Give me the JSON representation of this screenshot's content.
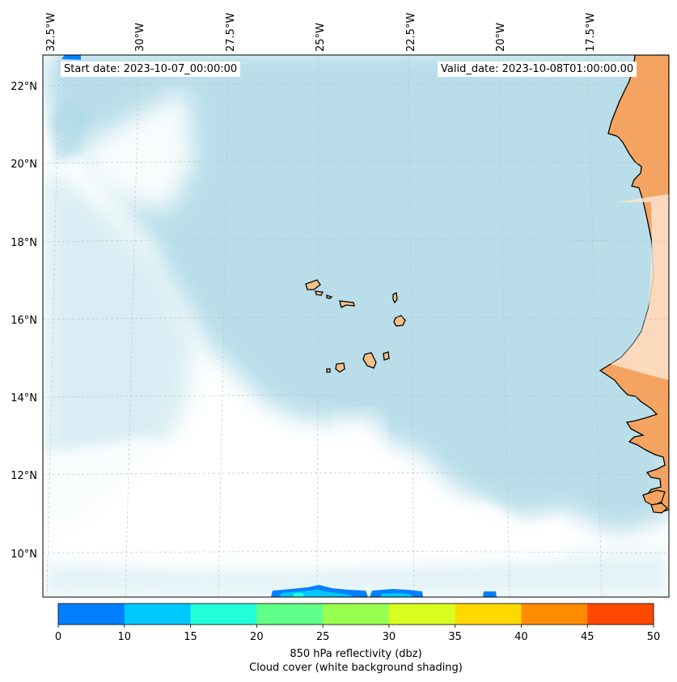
{
  "header": {
    "start_label": "Start date: 2023-10-07_00:00:00",
    "valid_label": "Valid_date: 2023-10-08T01:00:00.00"
  },
  "map": {
    "longitude_labels": [
      "32.5°W",
      "30°W",
      "27.5°W",
      "25°W",
      "22.5°W",
      "20°W",
      "17.5°W"
    ],
    "latitude_labels": [
      "22°N",
      "20°N",
      "18°N",
      "16°N",
      "14°N",
      "12°N",
      "10°N"
    ],
    "ocean_color": "#ffffff",
    "cloud_color": "#add8e6",
    "land_color": "#f4a460"
  },
  "colorbar": {
    "ticks": [
      "0",
      "10",
      "15",
      "20",
      "25",
      "30",
      "35",
      "40",
      "45",
      "50"
    ],
    "colors": [
      "#0080ff",
      "#00c8ff",
      "#20ffd8",
      "#60ff88",
      "#98ff50",
      "#d8ff20",
      "#ffd800",
      "#ff8c00",
      "#ff4800"
    ],
    "label": "850 hPa reflectivity (dbz)",
    "sublabel": "Cloud cover (white background shading)"
  }
}
